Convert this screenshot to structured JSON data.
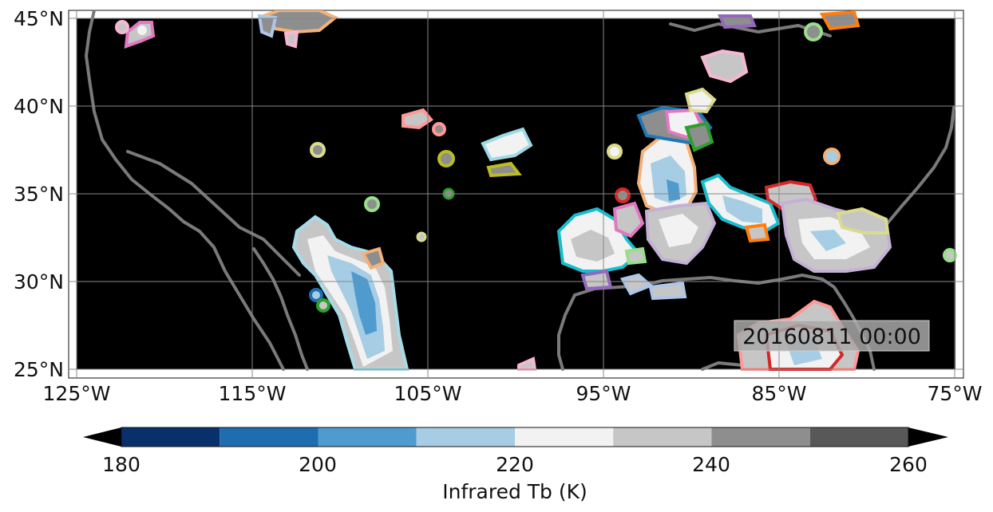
{
  "map": {
    "region": "Contiguous United States / Gulf of Mexico",
    "lon_range": [
      -125,
      -75
    ],
    "lat_range": [
      25,
      45
    ],
    "background_color": "#000000",
    "coastline_color": "#7a7a7a",
    "gridlines": true,
    "lat_tick_labels": [
      "45°N",
      "40°N",
      "35°N",
      "30°N",
      "25°N"
    ],
    "lon_tick_labels": [
      "125°W",
      "115°W",
      "105°W",
      "95°W",
      "85°W",
      "75°W"
    ],
    "timestamp": "20160811 00:00"
  },
  "colorbar": {
    "label": "Infrared Tb (K)",
    "tick_labels": [
      "180",
      "200",
      "220",
      "240",
      "260"
    ],
    "range": [
      180,
      260
    ],
    "bins": [
      {
        "from": 180,
        "to": 190,
        "color": "#08306b"
      },
      {
        "from": 190,
        "to": 200,
        "color": "#1f6db1"
      },
      {
        "from": 200,
        "to": 210,
        "color": "#4f9bcd"
      },
      {
        "from": 210,
        "to": 220,
        "color": "#a6cde4"
      },
      {
        "from": 220,
        "to": 230,
        "color": "#f2f2f2"
      },
      {
        "from": 230,
        "to": 240,
        "color": "#c6c6c6"
      },
      {
        "from": 240,
        "to": 250,
        "color": "#8e8e8e"
      },
      {
        "from": 250,
        "to": 260,
        "color": "#585858"
      }
    ],
    "extend": "both"
  }
}
